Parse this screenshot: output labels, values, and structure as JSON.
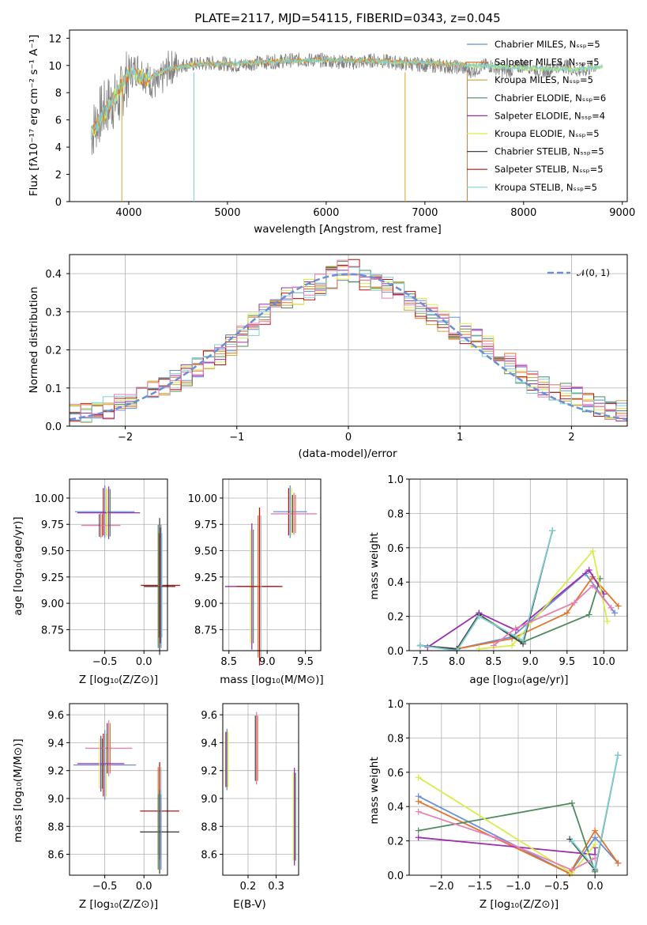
{
  "colors": {
    "chabrier_miles": "#6b8fd6",
    "salpeter_miles": "#e4742a",
    "kroupa_miles": "#c9a43a",
    "chabrier_elodie": "#4f8a5e",
    "salpeter_elodie": "#9a2fb0",
    "kroupa_elodie": "#d8ec4a",
    "chabrier_stelib": "#444444",
    "salpeter_stelib": "#b81414",
    "kroupa_stelib": "#7fd0d6",
    "pink": "#e77fb4",
    "gray": "#808080"
  },
  "chart_data": [
    {
      "id": "spectrum",
      "type": "line",
      "title": "PLATE=2117, MJD=54115, FIBERID=0343, z=0.045",
      "xlabel": "wavelength [Angstrom, rest frame]",
      "ylabel": "Flux [fλ10⁻¹⁷ erg cm⁻² s⁻¹ A⁻¹]",
      "xlim": [
        3400,
        9050
      ],
      "ylim": [
        0,
        12.6
      ],
      "xticks": [
        "4000",
        "5000",
        "6000",
        "7000",
        "8000",
        "9000"
      ],
      "yticks": [
        "0",
        "2",
        "4",
        "6",
        "8",
        "10",
        "12"
      ],
      "legend": [
        "Chabrier MILES, N_SSP=5",
        "Salpeter MILES, N_SSP=5",
        "Kroupa MILES, N_SSP=5",
        "Chabrier ELODIE, N_SSP=6",
        "Salpeter ELODIE, N_SSP=4",
        "Kroupa ELODIE, N_SSP=5",
        "Chabrier STELIB, N_SSP=5",
        "Salpeter STELIB, N_SSP=5",
        "Kroupa STELIB, N_SSP=5"
      ],
      "legend_position": "right",
      "series": [
        {
          "name": "data",
          "x": [
            3620,
            3700,
            3800,
            3900,
            4000,
            4100,
            4200,
            4300,
            4400,
            4500,
            4700,
            4900,
            5100,
            5300,
            5500,
            5700,
            5900,
            6100,
            6300,
            6500,
            6700,
            6900,
            7100,
            7300,
            7420
          ],
          "y": [
            5.0,
            6.3,
            7.2,
            7.5,
            9.5,
            9.8,
            9.0,
            8.5,
            9.8,
            10.0,
            10.1,
            10.2,
            10.0,
            10.2,
            10.3,
            10.4,
            10.4,
            10.3,
            10.2,
            10.4,
            10.2,
            10.1,
            10.0,
            9.9,
            9.8
          ]
        },
        {
          "name": "models",
          "x": [
            3620,
            3800,
            4000,
            4200,
            4400,
            4700,
            5000,
            5500,
            6000,
            6500,
            7000,
            7500,
            8000,
            8500,
            8800
          ],
          "y": [
            5.0,
            7.0,
            9.4,
            9.0,
            9.8,
            10.1,
            10.1,
            10.3,
            10.4,
            10.3,
            10.2,
            10.0,
            9.8,
            9.7,
            9.9
          ]
        }
      ]
    },
    {
      "id": "residuals",
      "type": "line",
      "xlabel": "(data-model)/error",
      "ylabel": "Normed distribution",
      "xlim": [
        -2.5,
        2.5
      ],
      "ylim": [
        0,
        0.45
      ],
      "xticks": [
        "−2",
        "−1",
        "0",
        "1",
        "2"
      ],
      "yticks": [
        "0.0",
        "0.1",
        "0.2",
        "0.3",
        "0.4"
      ],
      "legend": [
        "𝒩(0, 1)"
      ],
      "legend_position": "top-right",
      "grid": true,
      "series": [
        {
          "name": "histogram",
          "x": [
            -2.4,
            -2.2,
            -2.0,
            -1.8,
            -1.6,
            -1.4,
            -1.2,
            -1.0,
            -0.8,
            -0.6,
            -0.4,
            -0.2,
            0.0,
            0.2,
            0.4,
            0.6,
            0.8,
            1.0,
            1.2,
            1.4,
            1.6,
            1.8,
            2.0,
            2.2,
            2.4
          ],
          "y": [
            0.035,
            0.04,
            0.07,
            0.09,
            0.11,
            0.14,
            0.18,
            0.22,
            0.28,
            0.33,
            0.35,
            0.38,
            0.42,
            0.37,
            0.36,
            0.32,
            0.28,
            0.25,
            0.22,
            0.18,
            0.12,
            0.1,
            0.08,
            0.06,
            0.04
          ]
        }
      ]
    },
    {
      "id": "age-vs-z",
      "type": "scatter",
      "xlabel": "Z [log₁₀(Z/Z⊙)]",
      "ylabel": "age  [log₁₀(age/yr)]",
      "xlim": [
        -0.95,
        0.3
      ],
      "ylim": [
        8.55,
        10.18
      ],
      "xticks": [
        "−0.5",
        "0.0"
      ],
      "yticks": [
        "8.75",
        "9.00",
        "9.25",
        "9.50",
        "9.75",
        "10.00"
      ],
      "grid": true,
      "points": [
        {
          "x": -0.5,
          "y": 9.87,
          "xerr": 0.38,
          "yerr": 0.25
        },
        {
          "x": -0.55,
          "y": 9.74,
          "xerr": 0.25,
          "yerr": 0.12
        },
        {
          "x": -0.45,
          "y": 9.86,
          "xerr": 0.4,
          "yerr": 0.25
        },
        {
          "x": 0.21,
          "y": 9.17,
          "xerr": 0.25,
          "yerr": 0.55
        },
        {
          "x": 0.2,
          "y": 9.16,
          "xerr": 0.2,
          "yerr": 0.65
        }
      ]
    },
    {
      "id": "age-vs-mass",
      "type": "scatter",
      "xlabel": "mass [log₁₀(M/M⊙)]",
      "xlim": [
        8.42,
        9.7
      ],
      "ylim": [
        8.55,
        10.18
      ],
      "xticks": [
        "8.5",
        "9.0",
        "9.5"
      ],
      "yticks": [
        "8.75",
        "9.00",
        "9.25",
        "9.50",
        "9.75",
        "10.00"
      ],
      "grid": true,
      "points": [
        {
          "x": 9.3,
          "y": 9.87,
          "xerr": 0.22,
          "yerr": 0.25
        },
        {
          "x": 9.35,
          "y": 9.85,
          "xerr": 0.3,
          "yerr": 0.2
        },
        {
          "x": 8.8,
          "y": 9.16,
          "xerr": 0.35,
          "yerr": 0.6
        },
        {
          "x": 8.9,
          "y": 9.16,
          "xerr": 0.3,
          "yerr": 0.75
        }
      ]
    },
    {
      "id": "weight-vs-age",
      "type": "line",
      "xlabel": "age  [log₁₀(age/yr)]",
      "ylabel": "mass weight",
      "xlim": [
        7.35,
        10.32
      ],
      "ylim": [
        0,
        1
      ],
      "xticks": [
        "7.5",
        "8.0",
        "8.5",
        "9.0",
        "9.5",
        "10.0"
      ],
      "yticks": [
        "0.0",
        "0.2",
        "0.4",
        "0.6",
        "0.8",
        "1.0"
      ],
      "grid": true,
      "series": [
        {
          "name": "Chabrier MILES",
          "x": [
            7.5,
            8.0,
            8.75,
            9.75,
            10.15
          ],
          "y": [
            0.03,
            0.01,
            0.08,
            0.45,
            0.22
          ]
        },
        {
          "name": "Salpeter MILES",
          "x": [
            8.0,
            8.75,
            9.5,
            9.85,
            10.2
          ],
          "y": [
            0.01,
            0.07,
            0.22,
            0.43,
            0.26
          ]
        },
        {
          "name": "Chabrier ELODIE",
          "x": [
            7.5,
            8.0,
            8.3,
            8.9,
            9.8,
            9.95
          ],
          "y": [
            0.03,
            0.01,
            0.21,
            0.05,
            0.21,
            0.42
          ]
        },
        {
          "name": "Salpeter ELODIE",
          "x": [
            7.6,
            8.3,
            8.8,
            9.8,
            10.0
          ],
          "y": [
            0.02,
            0.22,
            0.12,
            0.47,
            0.33
          ]
        },
        {
          "name": "Kroupa ELODIE",
          "x": [
            8.3,
            8.75,
            9.85,
            10.05
          ],
          "y": [
            0.01,
            0.03,
            0.58,
            0.17
          ]
        },
        {
          "name": "Chabrier STELIB",
          "x": [
            7.5,
            8.0,
            8.3,
            8.9,
            9.3
          ],
          "y": [
            0.03,
            0.01,
            0.21,
            0.04,
            0.7
          ]
        },
        {
          "name": "Kroupa STELIB",
          "x": [
            7.5,
            8.0,
            8.3,
            8.9,
            9.3
          ],
          "y": [
            0.03,
            0.0,
            0.2,
            0.06,
            0.7
          ]
        },
        {
          "name": "pink",
          "x": [
            8.5,
            8.8,
            9.6,
            9.85,
            10.1
          ],
          "y": [
            0.03,
            0.13,
            0.28,
            0.38,
            0.25
          ]
        }
      ]
    },
    {
      "id": "mass-vs-z",
      "type": "scatter",
      "xlabel": "Z [log₁₀(Z/Z⊙)]",
      "ylabel": "mass [log₁₀(M/M⊙)]",
      "xlim": [
        -0.95,
        0.3
      ],
      "ylim": [
        8.45,
        9.68
      ],
      "xticks": [
        "−0.5",
        "0.0"
      ],
      "yticks": [
        "8.6",
        "8.8",
        "9.0",
        "9.2",
        "9.4",
        "9.6"
      ],
      "grid": true,
      "points": [
        {
          "x": -0.5,
          "y": 9.24,
          "xerr": 0.4,
          "yerr": 0.25
        },
        {
          "x": -0.45,
          "y": 9.36,
          "xerr": 0.3,
          "yerr": 0.2
        },
        {
          "x": -0.55,
          "y": 9.25,
          "xerr": 0.3,
          "yerr": 0.2
        },
        {
          "x": 0.2,
          "y": 8.91,
          "xerr": 0.25,
          "yerr": 0.35
        },
        {
          "x": 0.2,
          "y": 8.76,
          "xerr": 0.25,
          "yerr": 0.3
        }
      ]
    },
    {
      "id": "mass-vs-ebv",
      "type": "scatter",
      "xlabel": "E(B-V)",
      "xlim": [
        0.11,
        0.38
      ],
      "ylim": [
        8.45,
        9.68
      ],
      "xticks": [
        "0.2",
        "0.3"
      ],
      "yticks": [
        "8.6",
        "8.8",
        "9.0",
        "9.2",
        "9.4",
        "9.6"
      ],
      "grid": true,
      "points": [
        {
          "x": 0.125,
          "y": 9.28,
          "yerr": 0.22
        },
        {
          "x": 0.23,
          "y": 9.36,
          "yerr": 0.26
        },
        {
          "x": 0.365,
          "y": 8.87,
          "yerr": 0.35
        }
      ]
    },
    {
      "id": "weight-vs-z",
      "type": "line",
      "xlabel": "Z [log₁₀(Z/Z⊙)]",
      "ylabel": "mass weight",
      "xlim": [
        -2.42,
        0.42
      ],
      "ylim": [
        0,
        1
      ],
      "xticks": [
        "−2.0",
        "−1.5",
        "−1.0",
        "−0.5",
        "0.0"
      ],
      "yticks": [
        "0.0",
        "0.2",
        "0.4",
        "0.6",
        "0.8",
        "1.0"
      ],
      "grid": true,
      "series": [
        {
          "name": "Chabrier MILES",
          "x": [
            -2.3,
            -0.33,
            0.0,
            0.3
          ],
          "y": [
            0.46,
            0.01,
            0.22,
            0.07
          ]
        },
        {
          "name": "Salpeter MILES",
          "x": [
            -2.3,
            -0.33,
            0.0,
            0.3
          ],
          "y": [
            0.43,
            0.01,
            0.26,
            0.07
          ]
        },
        {
          "name": "Chabrier ELODIE",
          "x": [
            -2.3,
            -0.3,
            0.0
          ],
          "y": [
            0.26,
            0.42,
            0.02
          ]
        },
        {
          "name": "Salpeter ELODIE",
          "x": [
            -2.3,
            0.0,
            0.0
          ],
          "y": [
            0.22,
            0.12,
            0.16
          ]
        },
        {
          "name": "Kroupa ELODIE",
          "x": [
            -2.3,
            -0.3,
            0.0
          ],
          "y": [
            0.57,
            0.01,
            0.18
          ]
        },
        {
          "name": "Chabrier STELIB",
          "x": [
            -0.33,
            0.0,
            0.3
          ],
          "y": [
            0.21,
            0.03,
            0.7
          ]
        },
        {
          "name": "Kroupa STELIB",
          "x": [
            -0.3,
            0.0,
            0.3
          ],
          "y": [
            0.2,
            0.04,
            0.7
          ]
        },
        {
          "name": "pink",
          "x": [
            -2.3,
            -1.3,
            -0.3,
            0.0
          ],
          "y": [
            0.37,
            0.22,
            0.03,
            0.1
          ]
        }
      ]
    }
  ]
}
